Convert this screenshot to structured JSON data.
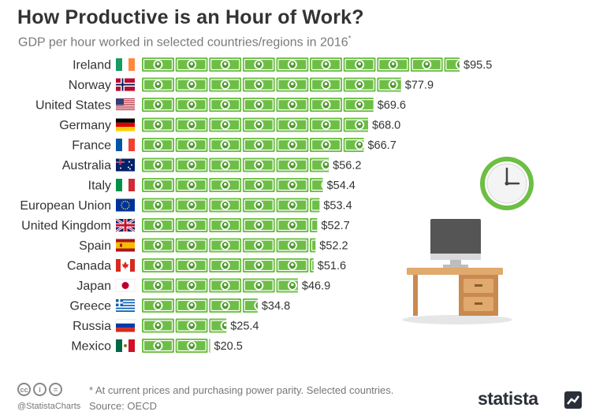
{
  "title": "How Productive is an Hour of Work?",
  "subtitle": "GDP per hour worked in selected countries/regions in 2016",
  "subtitle_marker": "*",
  "colors": {
    "bill": "#6dbe45",
    "bill_dark": "#4f9a2e",
    "text": "#333333"
  },
  "chart_data": {
    "type": "bar",
    "title": "How Productive is an Hour of Work?",
    "subtitle": "GDP per hour worked in selected countries/regions in 2016*",
    "xlabel": "",
    "ylabel": "",
    "unit": "$",
    "xlim": [
      0,
      100
    ],
    "categories": [
      "Ireland",
      "Norway",
      "United States",
      "Germany",
      "France",
      "Australia",
      "Italy",
      "European Union",
      "United Kingdom",
      "Spain",
      "Canada",
      "Japan",
      "Greece",
      "Russia",
      "Mexico"
    ],
    "values": [
      95.5,
      77.9,
      69.6,
      68.0,
      66.7,
      56.2,
      54.4,
      53.4,
      52.7,
      52.2,
      51.6,
      46.9,
      34.8,
      25.4,
      20.5
    ],
    "labels": [
      "$95.5",
      "$77.9",
      "$69.6",
      "$68.0",
      "$66.7",
      "$56.2",
      "$54.4",
      "$53.4",
      "$52.7",
      "$52.2",
      "$51.6",
      "$46.9",
      "$34.8",
      "$25.4",
      "$20.5"
    ],
    "flags": [
      "ireland-flag",
      "norway-flag",
      "usa-flag",
      "germany-flag",
      "france-flag",
      "australia-flag",
      "italy-flag",
      "eu-flag",
      "uk-flag",
      "spain-flag",
      "canada-flag",
      "japan-flag",
      "greece-flag",
      "russia-flag",
      "mexico-flag"
    ]
  },
  "footer": {
    "icons": [
      "cc-icon",
      "by-icon",
      "nd-icon"
    ],
    "icon_glyphs": [
      "cc",
      "i",
      "="
    ],
    "handle": "@StatistaCharts",
    "footnote": "* At current prices and purchasing power parity. Selected countries.",
    "source": "Source: OECD",
    "brand": "statista"
  }
}
